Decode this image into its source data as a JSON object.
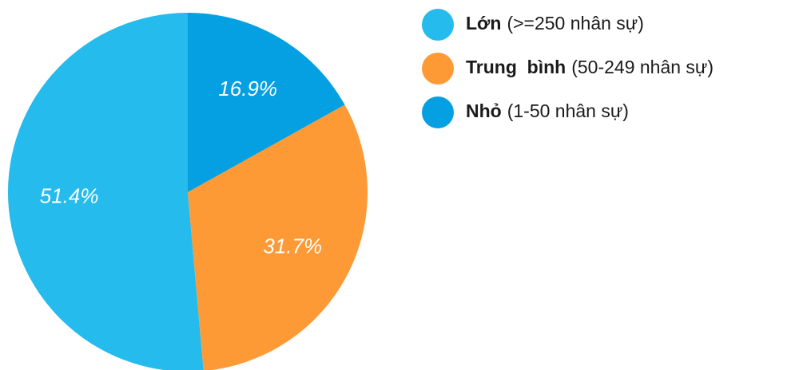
{
  "chart_data": {
    "type": "pie",
    "categories": [
      "Lớn",
      "Trung  bình",
      "Nhỏ"
    ],
    "category_notes": [
      "(>=250 nhân sự)",
      "(50-249 nhân sự)",
      "(1-50 nhân sự)"
    ],
    "values": [
      51.4,
      31.7,
      16.9
    ],
    "value_labels": [
      "51.4%",
      "31.7%",
      "16.9%"
    ],
    "colors": [
      "#25bbec",
      "#fe9a35",
      "#04a0e2"
    ]
  }
}
